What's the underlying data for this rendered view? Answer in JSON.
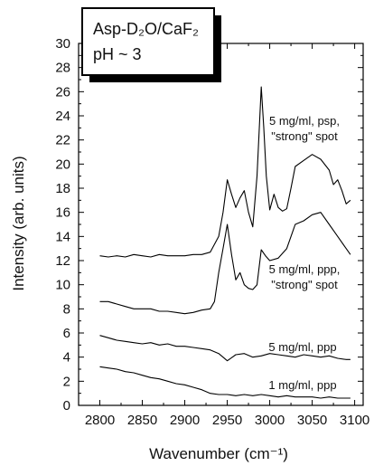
{
  "chart_data": {
    "type": "line",
    "title": "",
    "xlabel": "Wavenumber (cm⁻¹)",
    "ylabel": "Intensity (arb. units)",
    "xlim": [
      2775,
      3110
    ],
    "ylim": [
      0,
      30
    ],
    "xticks": [
      2800,
      2850,
      2900,
      2950,
      3000,
      3050,
      3100
    ],
    "yticks": [
      0,
      2,
      4,
      6,
      8,
      10,
      12,
      14,
      16,
      18,
      20,
      22,
      24,
      26,
      28,
      30
    ],
    "grid": false,
    "legend_box": {
      "line1": "Asp-D₂O/CaF₂",
      "line2": "pH ~ 3"
    },
    "series": [
      {
        "name": "5 mg/ml, psp, \"strong\" spot",
        "annotation": [
          "5 mg/ml, psp,",
          "\"strong\" spot"
        ],
        "x": [
          2800,
          2810,
          2820,
          2830,
          2840,
          2850,
          2860,
          2870,
          2880,
          2890,
          2900,
          2910,
          2920,
          2930,
          2940,
          2945,
          2950,
          2955,
          2960,
          2965,
          2970,
          2975,
          2980,
          2985,
          2990,
          2993,
          2996,
          3000,
          3005,
          3010,
          3015,
          3020,
          3025,
          3030,
          3040,
          3050,
          3060,
          3070,
          3075,
          3080,
          3085,
          3090,
          3095
        ],
        "values": [
          12.4,
          12.3,
          12.4,
          12.3,
          12.5,
          12.4,
          12.3,
          12.5,
          12.4,
          12.4,
          12.4,
          12.5,
          12.5,
          12.7,
          14.0,
          16.0,
          18.7,
          17.5,
          16.4,
          17.2,
          17.8,
          16.0,
          14.8,
          19.0,
          26.4,
          23.0,
          19.0,
          16.2,
          17.5,
          16.4,
          16.1,
          16.3,
          18.0,
          19.8,
          20.3,
          20.8,
          20.4,
          19.5,
          18.3,
          18.7,
          17.8,
          16.7,
          17.0
        ]
      },
      {
        "name": "5 mg/ml, ppp, \"strong\" spot",
        "annotation": [
          "5 mg/ml, ppp,",
          "\"strong\" spot"
        ],
        "x": [
          2800,
          2810,
          2820,
          2830,
          2840,
          2850,
          2860,
          2870,
          2880,
          2890,
          2900,
          2910,
          2920,
          2930,
          2935,
          2940,
          2945,
          2950,
          2955,
          2960,
          2965,
          2970,
          2975,
          2980,
          2985,
          2990,
          2995,
          3000,
          3010,
          3020,
          3030,
          3040,
          3050,
          3060,
          3070,
          3080,
          3090,
          3095
        ],
        "values": [
          8.6,
          8.6,
          8.4,
          8.2,
          8.0,
          8.0,
          8.0,
          7.8,
          7.8,
          7.7,
          7.6,
          7.7,
          7.9,
          8.0,
          8.6,
          11.0,
          13.0,
          15.0,
          12.5,
          10.4,
          11.0,
          10.0,
          9.7,
          9.6,
          10.0,
          12.9,
          12.4,
          12.0,
          12.2,
          13.0,
          15.0,
          15.3,
          15.8,
          16.0,
          15.0,
          14.0,
          13.0,
          12.5
        ]
      },
      {
        "name": "5 mg/ml, ppp",
        "annotation": [
          "5 mg/ml, ppp"
        ],
        "x": [
          2800,
          2810,
          2820,
          2830,
          2840,
          2850,
          2860,
          2870,
          2880,
          2890,
          2900,
          2910,
          2920,
          2930,
          2940,
          2950,
          2960,
          2970,
          2980,
          2990,
          3000,
          3010,
          3020,
          3030,
          3040,
          3050,
          3060,
          3070,
          3080,
          3090,
          3095
        ],
        "values": [
          5.8,
          5.6,
          5.4,
          5.3,
          5.2,
          5.1,
          5.2,
          5.0,
          5.1,
          4.9,
          4.9,
          4.8,
          4.7,
          4.6,
          4.3,
          3.7,
          4.2,
          4.3,
          4.0,
          4.1,
          4.3,
          4.2,
          4.1,
          4.0,
          4.2,
          4.1,
          4.0,
          4.1,
          3.9,
          3.8,
          3.8
        ]
      },
      {
        "name": "1 mg/ml, ppp",
        "annotation": [
          "1 mg/ml, ppp"
        ],
        "x": [
          2800,
          2810,
          2820,
          2830,
          2840,
          2850,
          2860,
          2870,
          2880,
          2890,
          2900,
          2910,
          2920,
          2930,
          2940,
          2950,
          2960,
          2970,
          2980,
          2990,
          3000,
          3010,
          3020,
          3030,
          3040,
          3050,
          3060,
          3070,
          3080,
          3090,
          3095
        ],
        "values": [
          3.2,
          3.1,
          3.0,
          2.8,
          2.7,
          2.5,
          2.3,
          2.2,
          2.0,
          1.8,
          1.7,
          1.5,
          1.3,
          1.0,
          0.9,
          0.9,
          0.8,
          0.9,
          0.8,
          0.9,
          0.8,
          0.7,
          0.8,
          0.7,
          0.7,
          0.7,
          0.6,
          0.7,
          0.6,
          0.6,
          0.6
        ]
      }
    ]
  }
}
